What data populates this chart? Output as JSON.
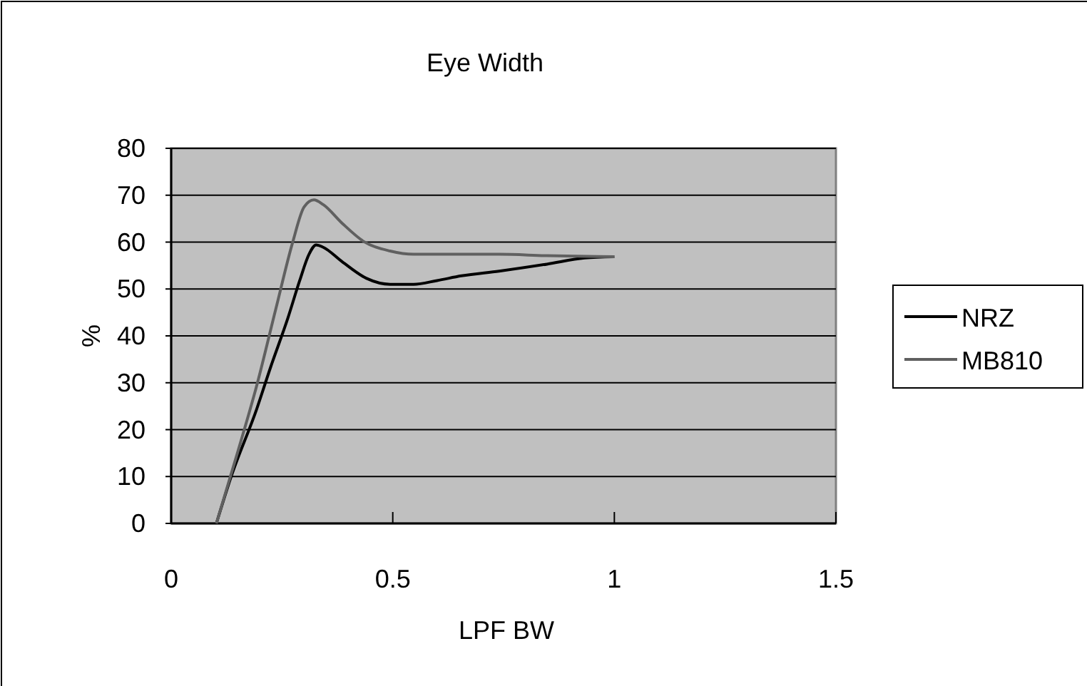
{
  "chart_data": {
    "type": "line",
    "title": "Eye Width",
    "xlabel": "LPF BW",
    "ylabel": "%",
    "xlim": [
      0,
      1.5
    ],
    "xticks": [
      0,
      0.5,
      1,
      1.5
    ],
    "ylim": [
      0,
      80
    ],
    "yticks": [
      0,
      10,
      20,
      30,
      40,
      50,
      60,
      70,
      80
    ],
    "grid": "y",
    "legend": "right",
    "marker": "none",
    "series": [
      {
        "name": "NRZ",
        "color": "#000000",
        "x": [
          0.102,
          0.134,
          0.193,
          0.225,
          0.263,
          0.29,
          0.311,
          0.327,
          0.343,
          0.386,
          0.44,
          0.494,
          0.547,
          0.6,
          0.655,
          0.74,
          0.848,
          0.933,
          1
        ],
        "values": [
          0,
          9.6,
          24.4,
          33.5,
          43.7,
          51.8,
          57.4,
          59.4,
          58.9,
          55.8,
          52.3,
          51,
          51,
          51.8,
          52.8,
          53.8,
          55.3,
          56.6,
          56.9
        ]
      },
      {
        "name": "MB810",
        "color": "#606060",
        "x": [
          0.102,
          0.15,
          0.193,
          0.236,
          0.274,
          0.3,
          0.322,
          0.343,
          0.386,
          0.435,
          0.494,
          0.547,
          0.633,
          0.74,
          0.848,
          1
        ],
        "values": [
          0,
          15.2,
          29.4,
          45.7,
          59.9,
          67.5,
          69,
          68,
          64,
          60.1,
          58.1,
          57.4,
          57.4,
          57.4,
          57.1,
          56.9
        ]
      }
    ]
  }
}
